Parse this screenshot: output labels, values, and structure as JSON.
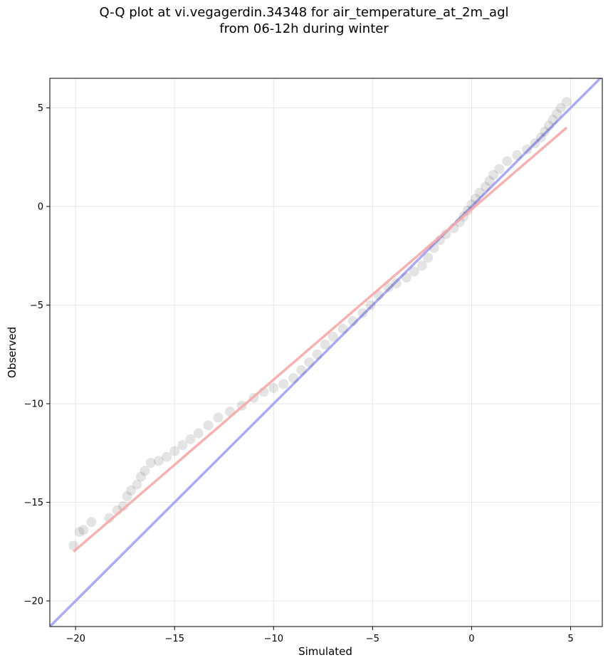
{
  "chart_data": {
    "type": "scatter",
    "title": "Q-Q plot at vi.vegagerdin.34348 for air_temperature_at_2m_agl",
    "subtitle": "from 06-12h during winter",
    "xlabel": "Simulated",
    "ylabel": "Observed",
    "xlim": [
      -21.3,
      6.6
    ],
    "ylim": [
      -21.3,
      6.5
    ],
    "xticks": [
      -20,
      -15,
      -10,
      -5,
      0,
      5
    ],
    "yticks": [
      -20,
      -15,
      -10,
      -5,
      0,
      5
    ],
    "xtick_labels": [
      "−20",
      "−15",
      "−10",
      "−5",
      "0",
      "5"
    ],
    "ytick_labels": [
      "−20",
      "−15",
      "−10",
      "−5",
      "0",
      "5"
    ],
    "grid": true,
    "colors": {
      "points": "#222222",
      "identity_line": "#aaaaf5",
      "fit_line": "#f5a9a9"
    },
    "series": [
      {
        "type": "scatter",
        "points": [
          [
            -20.1,
            -17.2
          ],
          [
            -19.8,
            -16.5
          ],
          [
            -19.6,
            -16.4
          ],
          [
            -19.2,
            -16.0
          ],
          [
            -18.3,
            -15.8
          ],
          [
            -17.9,
            -15.4
          ],
          [
            -17.6,
            -15.2
          ],
          [
            -17.4,
            -14.7
          ],
          [
            -17.2,
            -14.4
          ],
          [
            -16.9,
            -14.1
          ],
          [
            -16.7,
            -13.7
          ],
          [
            -16.5,
            -13.4
          ],
          [
            -16.2,
            -13.0
          ],
          [
            -15.8,
            -12.9
          ],
          [
            -15.4,
            -12.7
          ],
          [
            -15.0,
            -12.4
          ],
          [
            -14.6,
            -12.1
          ],
          [
            -14.2,
            -11.8
          ],
          [
            -13.8,
            -11.5
          ],
          [
            -13.3,
            -11.1
          ],
          [
            -12.8,
            -10.7
          ],
          [
            -12.2,
            -10.4
          ],
          [
            -11.6,
            -10.1
          ],
          [
            -11.0,
            -9.7
          ],
          [
            -10.5,
            -9.4
          ],
          [
            -10.0,
            -9.2
          ],
          [
            -9.5,
            -9.0
          ],
          [
            -9.0,
            -8.7
          ],
          [
            -8.6,
            -8.3
          ],
          [
            -8.2,
            -7.9
          ],
          [
            -7.8,
            -7.5
          ],
          [
            -7.4,
            -7.0
          ],
          [
            -7.0,
            -6.6
          ],
          [
            -6.5,
            -6.2
          ],
          [
            -6.0,
            -5.8
          ],
          [
            -5.5,
            -5.4
          ],
          [
            -5.1,
            -5.0
          ],
          [
            -4.7,
            -4.5
          ],
          [
            -4.2,
            -4.1
          ],
          [
            -3.8,
            -3.9
          ],
          [
            -3.3,
            -3.6
          ],
          [
            -2.9,
            -3.3
          ],
          [
            -2.5,
            -3.0
          ],
          [
            -2.2,
            -2.6
          ],
          [
            -1.9,
            -2.1
          ],
          [
            -1.6,
            -1.7
          ],
          [
            -1.3,
            -1.4
          ],
          [
            -0.9,
            -1.1
          ],
          [
            -0.6,
            -0.8
          ],
          [
            -0.4,
            -0.5
          ],
          [
            -0.2,
            -0.2
          ],
          [
            0.0,
            0.1
          ],
          [
            0.2,
            0.4
          ],
          [
            0.4,
            0.7
          ],
          [
            0.7,
            1.0
          ],
          [
            0.9,
            1.3
          ],
          [
            1.1,
            1.6
          ],
          [
            1.4,
            1.9
          ],
          [
            1.8,
            2.3
          ],
          [
            2.3,
            2.6
          ],
          [
            2.8,
            2.9
          ],
          [
            3.2,
            3.2
          ],
          [
            3.5,
            3.5
          ],
          [
            3.7,
            3.8
          ],
          [
            3.9,
            4.1
          ],
          [
            4.1,
            4.4
          ],
          [
            4.3,
            4.7
          ],
          [
            4.5,
            5.0
          ],
          [
            4.8,
            5.3
          ]
        ]
      },
      {
        "type": "line",
        "points": [
          [
            -21.3,
            -21.3
          ],
          [
            6.6,
            6.6
          ]
        ]
      },
      {
        "type": "line",
        "points": [
          [
            -20.1,
            -17.5
          ],
          [
            4.8,
            4.0
          ]
        ]
      }
    ]
  }
}
